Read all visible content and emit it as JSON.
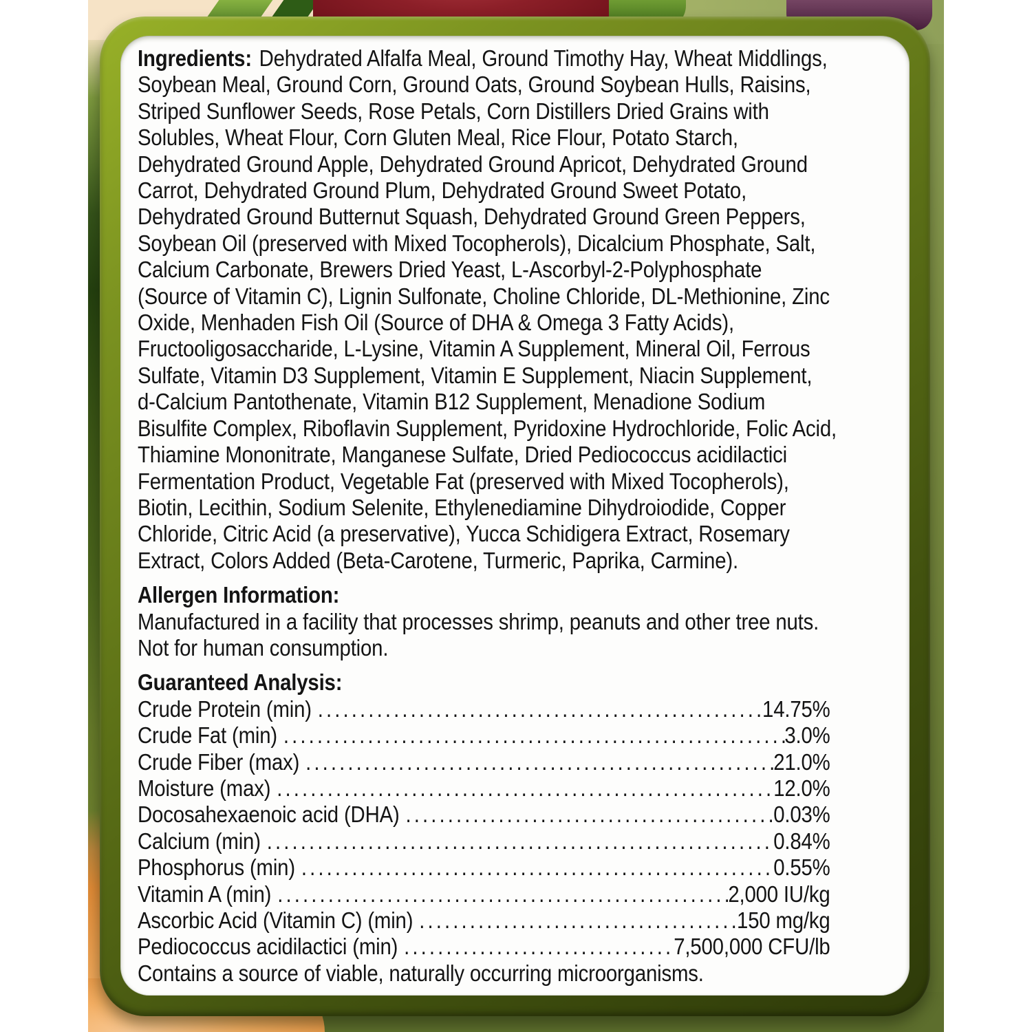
{
  "label_panel": {
    "ingredients": {
      "heading": "Ingredients:",
      "lines": [
        "Dehydrated Alfalfa Meal, Ground Timothy Hay, Wheat Middlings,",
        "Soybean Meal, Ground Corn, Ground Oats, Ground Soybean Hulls, Raisins,",
        "Striped Sunflower Seeds, Rose Petals, Corn Distillers Dried Grains with",
        "Solubles, Wheat Flour, Corn Gluten Meal, Rice Flour, Potato Starch,",
        "Dehydrated Ground Apple, Dehydrated Ground Apricot, Dehydrated Ground",
        "Carrot, Dehydrated Ground Plum, Dehydrated Ground Sweet Potato,",
        "Dehydrated Ground Butternut Squash, Dehydrated Ground Green Peppers,",
        "Soybean Oil (preserved with Mixed Tocopherols), Dicalcium Phosphate, Salt,",
        "Calcium Carbonate, Brewers Dried Yeast, L-Ascorbyl-2-Polyphosphate",
        "(Source of Vitamin C), Lignin Sulfonate, Choline Chloride, DL-Methionine, Zinc",
        "Oxide, Menhaden Fish Oil (Source of DHA & Omega 3 Fatty Acids),",
        "Fructooligosaccharide, L-Lysine, Vitamin A Supplement, Mineral Oil, Ferrous",
        "Sulfate, Vitamin D3 Supplement, Vitamin E Supplement, Niacin Supplement,",
        "d-Calcium Pantothenate, Vitamin B12 Supplement, Menadione Sodium",
        "Bisulfite Complex, Riboflavin Supplement, Pyridoxine Hydrochloride, Folic Acid,",
        "Thiamine Mononitrate, Manganese Sulfate, Dried Pediococcus acidilactici",
        "Fermentation Product, Vegetable Fat (preserved with Mixed Tocopherols),",
        "Biotin, Lecithin, Sodium Selenite, Ethylenediamine Dihydroiodide, Copper",
        "Chloride, Citric Acid (a preservative), Yucca Schidigera Extract, Rosemary",
        "Extract, Colors Added (Beta-Carotene, Turmeric, Paprika, Carmine)."
      ]
    },
    "allergen": {
      "heading": "Allergen Information:",
      "lines": [
        "Manufactured in a facility that processes shrimp, peanuts and other tree nuts.",
        "Not for human consumption."
      ]
    },
    "analysis": {
      "heading": "Guaranteed Analysis:",
      "rows": [
        {
          "label": "Crude Protein (min)",
          "value": "14.75%"
        },
        {
          "label": "Crude Fat (min)",
          "value": "3.0%"
        },
        {
          "label": "Crude Fiber (max)",
          "value": "21.0%"
        },
        {
          "label": "Moisture (max)",
          "value": "12.0%"
        },
        {
          "label": "Docosahexaenoic acid (DHA)",
          "value": "0.03%"
        },
        {
          "label": "Calcium (min)",
          "value": "0.84%"
        },
        {
          "label": "Phosphorus (min)",
          "value": "0.55%"
        },
        {
          "label": "Vitamin A (min)",
          "value": "2,000 IU/kg"
        },
        {
          "label": "Ascorbic Acid (Vitamin C) (min)",
          "value": "150 mg/kg"
        },
        {
          "label": "Pediococcus acidilactici (min)",
          "value": "7,500,000 CFU/lb"
        }
      ]
    },
    "footnote": "Contains a source of viable, naturally occurring microorganisms."
  },
  "colors": {
    "text": "#141414",
    "panel-white": "#fdfdfc",
    "border-light": "#98b128",
    "border-mid": "#5a6e16",
    "border-dark": "#2e3a09",
    "olive-top": "#8fa05a",
    "olive-bottom": "#5d6e2d",
    "cream": "#f6e3c6",
    "leaf-light": "#86b141",
    "leaf-dark": "#2e5c16",
    "apple-light": "#b03a42",
    "apple-mid": "#8c1f28",
    "apple-dark": "#6d1019",
    "plum-light": "#7a4a68",
    "plum-dark": "#4a1f3d",
    "apricot-glow": "#f7c690",
    "apricot-light": "#f3ae62",
    "apricot-mid": "#e08a36"
  }
}
